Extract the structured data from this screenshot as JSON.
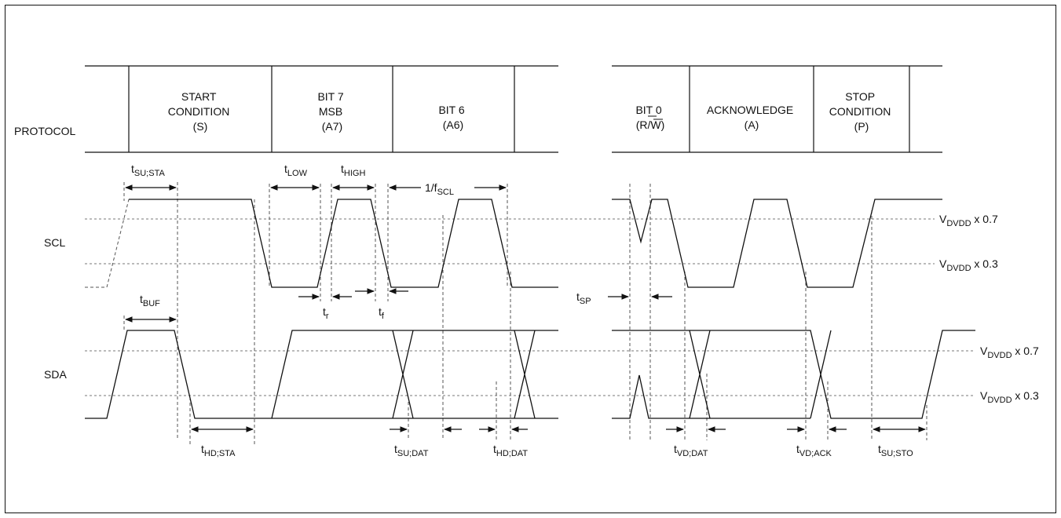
{
  "protocol": {
    "row_label": "PROTOCOL",
    "left_boxes": [
      {
        "lines": [
          "START",
          "CONDITION",
          "(S)"
        ]
      },
      {
        "lines": [
          "BIT 7",
          "MSB",
          "(A7)"
        ]
      },
      {
        "lines": [
          "BIT 6",
          "(A6)"
        ]
      }
    ],
    "right_boxes": [
      {
        "lines": [
          "BIT 0",
          "(R/W)"
        ]
      },
      {
        "lines": [
          "ACKNOWLEDGE",
          "(A)"
        ]
      },
      {
        "lines": [
          "STOP",
          "CONDITION",
          "(P)"
        ]
      }
    ]
  },
  "signals": {
    "scl": "SCL",
    "sda": "SDA"
  },
  "thresholds": {
    "high": {
      "base": "V",
      "sub": "DVDD",
      "suffix": " x 0.7"
    },
    "low": {
      "base": "V",
      "sub": "DVDD",
      "suffix": " x 0.3"
    }
  },
  "timing": {
    "t_su_sta": {
      "base": "t",
      "sub": "SU;STA"
    },
    "t_low": {
      "base": "t",
      "sub": "LOW"
    },
    "t_high": {
      "base": "t",
      "sub": "HIGH"
    },
    "f_scl": {
      "base": "1/f",
      "sub": "SCL"
    },
    "t_r": {
      "base": "t",
      "sub": "r"
    },
    "t_f": {
      "base": "t",
      "sub": "f"
    },
    "t_sp": {
      "base": "t",
      "sub": "SP"
    },
    "t_buf": {
      "base": "t",
      "sub": "BUF"
    },
    "t_hd_sta": {
      "base": "t",
      "sub": "HD;STA"
    },
    "t_su_dat": {
      "base": "t",
      "sub": "SU;DAT"
    },
    "t_hd_dat": {
      "base": "t",
      "sub": "HD;DAT"
    },
    "t_vd_dat": {
      "base": "t",
      "sub": "VD;DAT"
    },
    "t_vd_ack": {
      "base": "t",
      "sub": "VD;ACK"
    },
    "t_su_sto": {
      "base": "t",
      "sub": "SU;STO"
    }
  }
}
